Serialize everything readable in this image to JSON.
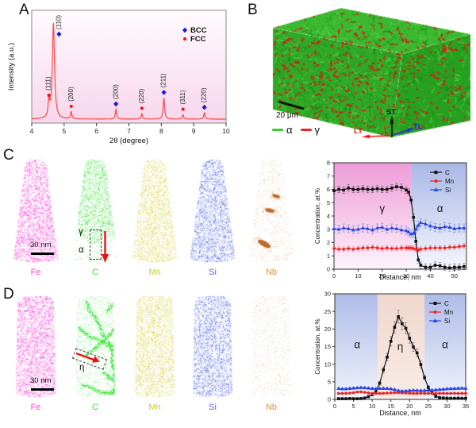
{
  "panels": {
    "a": "A",
    "b": "B",
    "c": "C",
    "d": "D"
  },
  "chart_data": [
    {
      "id": "xrd",
      "type": "line",
      "title": "",
      "xlabel": "2θ (degree)",
      "ylabel": "Intensity (a.u.)",
      "xlim": [
        4,
        10
      ],
      "xticks": [
        4,
        5,
        6,
        7,
        8,
        9,
        10
      ],
      "grid": false,
      "line_color": "#ff4747",
      "legend_position": "top-right",
      "legend": [
        {
          "label": "BCC",
          "marker": "diamond",
          "color": "#1c1cd8"
        },
        {
          "label": "FCC",
          "marker": "circle",
          "color": "#ee1414"
        }
      ],
      "peaks": [
        {
          "two_theta": 4.53,
          "rel_intensity": 0.19,
          "hkl": "(111)",
          "phase": "FCC"
        },
        {
          "two_theta": 4.67,
          "rel_intensity": 1.0,
          "hkl": "(110)",
          "phase": "BCC"
        },
        {
          "two_theta": 5.22,
          "rel_intensity": 0.075,
          "hkl": "(200)",
          "phase": "FCC"
        },
        {
          "two_theta": 6.6,
          "rel_intensity": 0.1,
          "hkl": "(200)",
          "phase": "BCC"
        },
        {
          "two_theta": 7.4,
          "rel_intensity": 0.055,
          "hkl": "(220)",
          "phase": "FCC"
        },
        {
          "two_theta": 8.08,
          "rel_intensity": 0.22,
          "hkl": "(211)",
          "phase": "BCC"
        },
        {
          "two_theta": 8.67,
          "rel_intensity": 0.045,
          "hkl": "(311)",
          "phase": "FCC"
        },
        {
          "two_theta": 9.33,
          "rel_intensity": 0.065,
          "hkl": "(220)",
          "phase": "BCC"
        }
      ]
    },
    {
      "id": "profile_c",
      "type": "line",
      "xlabel": "Distance, nm",
      "ylabel": "Concentration, at.%",
      "xlim": [
        0,
        55
      ],
      "ylim": [
        0,
        8
      ],
      "xticks": [
        0,
        10,
        20,
        30,
        40,
        50
      ],
      "yticks": [
        0,
        1,
        2,
        3,
        4,
        5,
        6,
        7,
        8
      ],
      "legend_position": "top-right",
      "regions": [
        {
          "label": "γ",
          "from": 0,
          "to": 32,
          "top": "#ee9bd7",
          "bottom": "#fdf4fb",
          "label_x": 20,
          "label_y": 4.3
        },
        {
          "label": "α",
          "from": 32,
          "to": 55,
          "top": "#a9b7e6",
          "bottom": "#f5f7fd",
          "label_x": 44,
          "label_y": 4.3
        }
      ],
      "x": [
        0,
        2,
        4,
        6,
        8,
        10,
        12,
        14,
        16,
        18,
        20,
        22,
        24,
        26,
        28,
        30,
        31,
        32,
        33,
        34,
        35,
        36,
        38,
        40,
        42,
        44,
        46,
        48,
        50,
        52,
        54
      ],
      "series": [
        {
          "name": "C",
          "color": "#111111",
          "marker": "square",
          "err": 0.25,
          "err_scale": 0,
          "values": [
            5.9,
            6.0,
            5.95,
            6.1,
            6.0,
            6.0,
            6.05,
            6.0,
            6.0,
            6.05,
            6.0,
            6.0,
            6.1,
            6.2,
            6.15,
            5.95,
            5.8,
            5.2,
            3.9,
            2.1,
            0.7,
            0.3,
            0.15,
            0.15,
            0.3,
            0.25,
            0.15,
            0.1,
            0.15,
            0.15,
            0.2
          ]
        },
        {
          "name": "Mn",
          "color": "#ee2222",
          "marker": "circle",
          "err": 0.18,
          "err_scale": 0,
          "values": [
            1.55,
            1.5,
            1.5,
            1.55,
            1.5,
            1.55,
            1.6,
            1.6,
            1.65,
            1.6,
            1.55,
            1.6,
            1.55,
            1.55,
            1.6,
            1.6,
            1.6,
            1.6,
            1.55,
            1.5,
            1.45,
            1.5,
            1.55,
            1.6,
            1.6,
            1.6,
            1.6,
            1.65,
            1.65,
            1.7,
            1.75
          ]
        },
        {
          "name": "Si",
          "color": "#2b46e0",
          "marker": "triangle",
          "err": 0.3,
          "err_scale": 0,
          "values": [
            3.05,
            3.0,
            3.1,
            3.05,
            2.95,
            3.0,
            3.1,
            3.05,
            2.95,
            3.1,
            3.15,
            3.0,
            3.1,
            3.05,
            2.95,
            2.9,
            2.8,
            2.65,
            2.7,
            3.0,
            3.3,
            3.5,
            3.4,
            3.25,
            3.15,
            3.1,
            3.2,
            3.15,
            3.05,
            3.1,
            3.1
          ]
        }
      ]
    },
    {
      "id": "profile_d",
      "type": "line",
      "xlabel": "Distance, nm",
      "ylabel": "Concentration, at.%",
      "xlim": [
        0,
        35
      ],
      "ylim": [
        0,
        30
      ],
      "xticks": [
        0,
        5,
        10,
        15,
        20,
        25,
        30,
        35
      ],
      "yticks": [
        0,
        5,
        10,
        15,
        20,
        25,
        30
      ],
      "legend_position": "top-right",
      "regions": [
        {
          "label": "α",
          "from": 0,
          "to": 11.5,
          "top": "#aebce7",
          "bottom": "#eff2fb",
          "label_x": 6,
          "label_y": 14.5
        },
        {
          "label": "η",
          "from": 11.5,
          "to": 24,
          "top": "#f0d7cd",
          "bottom": "#f8ece6",
          "label_x": 17.5,
          "label_y": 14
        },
        {
          "label": "α",
          "from": 24,
          "to": 35,
          "top": "#aebce7",
          "bottom": "#eff2fb",
          "label_x": 29.5,
          "label_y": 14.5
        }
      ],
      "x": [
        1,
        2,
        3,
        4,
        5,
        6,
        7,
        8,
        9,
        10,
        11,
        12,
        13,
        14,
        15,
        16,
        17,
        18,
        19,
        20,
        21,
        22,
        23,
        24,
        25,
        26,
        27,
        28,
        29,
        30,
        31,
        32,
        33,
        34,
        35
      ],
      "series": [
        {
          "name": "C",
          "color": "#111111",
          "marker": "square",
          "err": 0.3,
          "err_scale": 0.065,
          "values": [
            0.2,
            0.2,
            0.2,
            0.25,
            0.2,
            0.2,
            0.25,
            0.4,
            0.8,
            1.4,
            2.2,
            4.6,
            8.4,
            12.0,
            16.5,
            20.5,
            23.5,
            21.5,
            20.2,
            17.4,
            14.9,
            13.2,
            9.9,
            6.2,
            3.4,
            1.8,
            0.9,
            0.5,
            0.4,
            0.35,
            0.3,
            0.3,
            0.35,
            0.3,
            0.3
          ]
        },
        {
          "name": "Mn",
          "color": "#ee2222",
          "marker": "circle",
          "err": 0.22,
          "err_scale": 0,
          "values": [
            1.7,
            1.7,
            1.75,
            1.8,
            1.9,
            2.1,
            2.15,
            2.0,
            1.85,
            1.75,
            1.7,
            1.7,
            1.75,
            1.8,
            1.85,
            1.9,
            1.9,
            1.85,
            1.8,
            1.75,
            1.7,
            1.7,
            1.75,
            1.7,
            1.7,
            1.75,
            1.7,
            1.7,
            1.75,
            1.7,
            1.7,
            1.75,
            1.7,
            1.7,
            1.7
          ]
        },
        {
          "name": "Si",
          "color": "#2b46e0",
          "marker": "triangle",
          "err": 0.28,
          "err_scale": 0,
          "values": [
            3.1,
            3.0,
            3.0,
            3.1,
            3.2,
            3.3,
            3.35,
            3.3,
            3.2,
            3.1,
            3.05,
            3.1,
            3.15,
            3.1,
            3.0,
            2.8,
            2.5,
            2.35,
            2.4,
            2.5,
            2.6,
            2.55,
            2.5,
            2.55,
            2.6,
            2.65,
            2.7,
            2.8,
            2.9,
            3.0,
            3.05,
            3.1,
            3.15,
            3.2,
            3.15
          ]
        }
      ]
    }
  ],
  "panel_b": {
    "scale_bar": "20 μm",
    "phase_colors": {
      "alpha": "#35b22a",
      "gamma": "#e51212"
    },
    "legend": [
      {
        "label": "α",
        "color": "#33cc33"
      },
      {
        "label": "γ",
        "color": "#ee2222"
      }
    ],
    "axes": {
      "up": {
        "label": "ST",
        "color": "#111111"
      },
      "left": {
        "label": "LT",
        "color": "#ee1111"
      },
      "right": {
        "label": "TL",
        "color": "#2323ee"
      }
    }
  },
  "panel_c": {
    "scale_bar": "30 nm",
    "annotations": {
      "gamma": "γ",
      "alpha": "α"
    },
    "tips": [
      {
        "label": "Fe",
        "color": "#fb1ed0",
        "label_color": "#ff3fd0",
        "pattern": "uniform"
      },
      {
        "label": "C",
        "color": "#2ce32c",
        "label_color": "#3ae03a",
        "pattern": "sparse_bottom"
      },
      {
        "label": "Mn",
        "color": "#d6ce34",
        "label_color": "#c9cf2b",
        "pattern": "uniform"
      },
      {
        "label": "Si",
        "color": "#3d56e0",
        "label_color": "#5163e8",
        "pattern": "uniform"
      },
      {
        "label": "Nb",
        "color": "#d8994e",
        "label_color": "#d8952f",
        "pattern": "nb_clusters"
      }
    ]
  },
  "panel_d": {
    "scale_bar": "30 nm",
    "annotations": {
      "eta": "η"
    },
    "tips": [
      {
        "label": "Fe",
        "color": "#fb1ed0",
        "label_color": "#ff3fd0",
        "pattern": "uniform"
      },
      {
        "label": "C",
        "color": "#2ce32c",
        "label_color": "#3ae03a",
        "pattern": "veins"
      },
      {
        "label": "Mn",
        "color": "#d6ce34",
        "label_color": "#c9cf2b",
        "pattern": "uniform"
      },
      {
        "label": "Si",
        "color": "#3d56e0",
        "label_color": "#5163e8",
        "pattern": "uniform"
      },
      {
        "label": "Nb",
        "color": "#d8994e",
        "label_color": "#d8952f",
        "pattern": "nb_sparse"
      }
    ]
  }
}
